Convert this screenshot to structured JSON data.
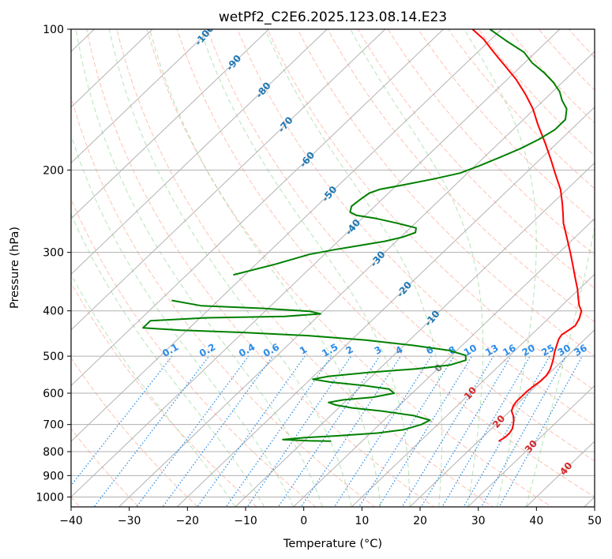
{
  "chart_data": {
    "type": "line",
    "subtype": "skew-t log-p diagram",
    "title": "wetPf2_C2E6.2025.123.08.14.E23",
    "xlabel": "Temperature (°C)",
    "ylabel": "Pressure (hPa)",
    "xlim": [
      -40,
      50
    ],
    "ylim": [
      1050,
      100
    ],
    "yscale": "log",
    "skew_deg_per_decade": 84,
    "x_ticks": [
      "−40",
      "−30",
      "−20",
      "−10",
      "0",
      "10",
      "20",
      "30",
      "40",
      "50"
    ],
    "y_ticks": [
      "100",
      "200",
      "300",
      "400",
      "500",
      "600",
      "700",
      "800",
      "900",
      "1000"
    ],
    "grid": true,
    "colors": {
      "temperature": "#ff0000",
      "dewpoint": "#008000",
      "isotherm": "#a0a0a0",
      "dry_adiabat": "#ff9a80",
      "moist_adiabat": "#7ccc7c",
      "mixing_ratio": "#1e88e5",
      "dry_adiabat_label": "#d62728",
      "moist_label": "#1f77b4",
      "freezing_label": "#7f7f7f",
      "dewpoint_labels": "#2b8ce8"
    },
    "series": [
      {
        "name": "Temperature",
        "points": [
          {
            "p": 760,
            "t": 23.5
          },
          {
            "p": 745,
            "t": 23.9
          },
          {
            "p": 730,
            "t": 23.9
          },
          {
            "p": 715,
            "t": 23.6
          },
          {
            "p": 700,
            "t": 23.0
          },
          {
            "p": 685,
            "t": 22.3
          },
          {
            "p": 670,
            "t": 21.4
          },
          {
            "p": 655,
            "t": 20.3
          },
          {
            "p": 640,
            "t": 19.7
          },
          {
            "p": 625,
            "t": 19.4
          },
          {
            "p": 610,
            "t": 19.4
          },
          {
            "p": 595,
            "t": 19.4
          },
          {
            "p": 580,
            "t": 19.6
          },
          {
            "p": 565,
            "t": 19.9
          },
          {
            "p": 550,
            "t": 19.9
          },
          {
            "p": 535,
            "t": 19.5
          },
          {
            "p": 520,
            "t": 18.8
          },
          {
            "p": 505,
            "t": 18.0
          },
          {
            "p": 490,
            "t": 17.1
          },
          {
            "p": 475,
            "t": 16.3
          },
          {
            "p": 460,
            "t": 15.5
          },
          {
            "p": 450,
            "t": 15.2
          },
          {
            "p": 440,
            "t": 15.6
          },
          {
            "p": 430,
            "t": 15.9
          },
          {
            "p": 415,
            "t": 15.3
          },
          {
            "p": 400,
            "t": 14.3
          },
          {
            "p": 390,
            "t": 13.0
          },
          {
            "p": 375,
            "t": 11.4
          },
          {
            "p": 360,
            "t": 9.8
          },
          {
            "p": 340,
            "t": 7.3
          },
          {
            "p": 320,
            "t": 4.7
          },
          {
            "p": 300,
            "t": 1.9
          },
          {
            "p": 285,
            "t": -0.4
          },
          {
            "p": 270,
            "t": -2.8
          },
          {
            "p": 260,
            "t": -4.5
          },
          {
            "p": 248,
            "t": -6.3
          },
          {
            "p": 235,
            "t": -8.4
          },
          {
            "p": 220,
            "t": -11.1
          },
          {
            "p": 205,
            "t": -14.5
          },
          {
            "p": 190,
            "t": -18.1
          },
          {
            "p": 175,
            "t": -22.1
          },
          {
            "p": 160,
            "t": -26.6
          },
          {
            "p": 148,
            "t": -30.3
          },
          {
            "p": 138,
            "t": -34.1
          },
          {
            "p": 128,
            "t": -38.5
          },
          {
            "p": 120,
            "t": -42.7
          },
          {
            "p": 112,
            "t": -47.2
          },
          {
            "p": 105,
            "t": -51.3
          },
          {
            "p": 100,
            "t": -55.0
          }
        ]
      },
      {
        "name": "Dewpoint",
        "points": [
          {
            "p": 760,
            "t": -5.3
          },
          {
            "p": 758,
            "t": -9.4
          },
          {
            "p": 754,
            "t": -13.9
          },
          {
            "p": 747,
            "t": -10.7
          },
          {
            "p": 740,
            "t": -5.3
          },
          {
            "p": 730,
            "t": 1.2
          },
          {
            "p": 718,
            "t": 5.1
          },
          {
            "p": 700,
            "t": 7.2
          },
          {
            "p": 685,
            "t": 7.9
          },
          {
            "p": 670,
            "t": 4.3
          },
          {
            "p": 655,
            "t": -2.0
          },
          {
            "p": 645,
            "t": -7.7
          },
          {
            "p": 636,
            "t": -11.0
          },
          {
            "p": 628,
            "t": -12.7
          },
          {
            "p": 620,
            "t": -10.6
          },
          {
            "p": 612,
            "t": -6.0
          },
          {
            "p": 600,
            "t": -3.1
          },
          {
            "p": 588,
            "t": -4.7
          },
          {
            "p": 578,
            "t": -9.6
          },
          {
            "p": 568,
            "t": -16.1
          },
          {
            "p": 560,
            "t": -19.6
          },
          {
            "p": 552,
            "t": -17.4
          },
          {
            "p": 542,
            "t": -11.4
          },
          {
            "p": 532,
            "t": -3.6
          },
          {
            "p": 522,
            "t": 1.5
          },
          {
            "p": 510,
            "t": 3.3
          },
          {
            "p": 498,
            "t": 2.4
          },
          {
            "p": 486,
            "t": -1.4
          },
          {
            "p": 474,
            "t": -8.5
          },
          {
            "p": 462,
            "t": -17.5
          },
          {
            "p": 452,
            "t": -28.2
          },
          {
            "p": 445,
            "t": -39.9
          },
          {
            "p": 440,
            "t": -51.0
          },
          {
            "p": 435,
            "t": -58.0
          },
          {
            "p": 420,
            "t": -58.0
          },
          {
            "p": 414,
            "t": -48.8
          },
          {
            "p": 411,
            "t": -35.7
          },
          {
            "p": 406,
            "t": -30.0
          },
          {
            "p": 401,
            "t": -32.3
          },
          {
            "p": 395,
            "t": -41.1
          },
          {
            "p": 390,
            "t": -52.0
          },
          {
            "p": 380,
            "t": -58.0
          }
        ],
        "upper_points": [
          {
            "p": 335,
            "t": -52.0
          },
          {
            "p": 318,
            "t": -46.7
          },
          {
            "p": 303,
            "t": -42.6
          },
          {
            "p": 296,
            "t": -39.1
          },
          {
            "p": 290,
            "t": -35.5
          },
          {
            "p": 284,
            "t": -32.0
          },
          {
            "p": 278,
            "t": -29.6
          },
          {
            "p": 272,
            "t": -28.3
          },
          {
            "p": 266,
            "t": -29.0
          },
          {
            "p": 260,
            "t": -33.0
          },
          {
            "p": 254,
            "t": -37.5
          },
          {
            "p": 250,
            "t": -41.5
          },
          {
            "p": 246,
            "t": -43.2
          },
          {
            "p": 239,
            "t": -44.0
          },
          {
            "p": 231,
            "t": -43.7
          },
          {
            "p": 224,
            "t": -43.3
          },
          {
            "p": 220,
            "t": -42.2
          },
          {
            "p": 215,
            "t": -38.8
          },
          {
            "p": 209,
            "t": -34.8
          },
          {
            "p": 203,
            "t": -31.3
          },
          {
            "p": 196,
            "t": -29.3
          },
          {
            "p": 188,
            "t": -27.3
          },
          {
            "p": 180,
            "t": -25.3
          },
          {
            "p": 172,
            "t": -23.8
          },
          {
            "p": 164,
            "t": -22.8
          },
          {
            "p": 156,
            "t": -22.8
          },
          {
            "p": 148,
            "t": -24.5
          },
          {
            "p": 142,
            "t": -26.8
          },
          {
            "p": 136,
            "t": -28.8
          },
          {
            "p": 130,
            "t": -31.5
          },
          {
            "p": 124,
            "t": -34.8
          },
          {
            "p": 118,
            "t": -38.7
          },
          {
            "p": 112,
            "t": -42.0
          },
          {
            "p": 106,
            "t": -47.0
          },
          {
            "p": 100,
            "t": -52.0
          }
        ]
      }
    ],
    "moist_adiabat_labels": [
      "-100",
      "-90",
      "-80",
      "-70",
      "-60",
      "-50",
      "-40",
      "-30",
      "-20",
      "-10"
    ],
    "dry_adiabat_labels": [
      "10",
      "20",
      "30",
      "40"
    ],
    "freezing_label": "0",
    "mixing_ratio_labels": [
      "0.1",
      "0.2",
      "0.4",
      "0.6",
      "1",
      "1.5",
      "2",
      "3",
      "4",
      "6",
      "8",
      "10",
      "13",
      "16",
      "20",
      "25",
      "30",
      "36"
    ]
  }
}
